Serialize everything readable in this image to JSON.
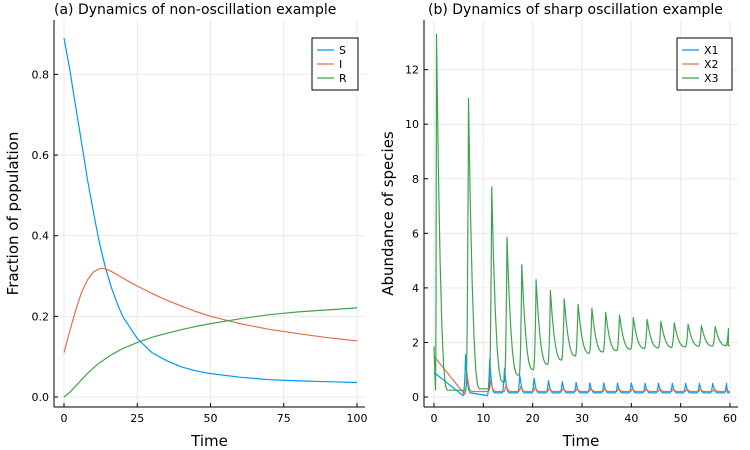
{
  "chart_data": [
    {
      "type": "line",
      "title": "(a) Dynamics of non-oscillation example",
      "xlabel": "Time",
      "ylabel": "Fraction of population",
      "xlim": [
        0,
        100
      ],
      "ylim": [
        0,
        0.92
      ],
      "xticks": [
        0,
        25,
        50,
        75,
        100
      ],
      "yticks": [
        0.0,
        0.2,
        0.4,
        0.6,
        0.8
      ],
      "xtick_labels": [
        "0",
        "25",
        "50",
        "75",
        "100"
      ],
      "ytick_labels": [
        "0.0",
        "0.2",
        "0.4",
        "0.6",
        "0.8"
      ],
      "grid": true,
      "legend": "top-right",
      "series": [
        {
          "name": "S",
          "color": "#009AFA",
          "x": [
            0,
            2,
            4,
            6,
            8,
            10,
            12,
            14,
            16,
            18,
            20,
            25,
            30,
            35,
            40,
            45,
            50,
            60,
            70,
            80,
            90,
            100
          ],
          "y": [
            0.89,
            0.81,
            0.72,
            0.63,
            0.54,
            0.46,
            0.385,
            0.325,
            0.275,
            0.235,
            0.2,
            0.145,
            0.11,
            0.09,
            0.075,
            0.065,
            0.058,
            0.049,
            0.043,
            0.04,
            0.038,
            0.036
          ]
        },
        {
          "name": "I",
          "color": "#E36F47",
          "x": [
            0,
            2,
            4,
            6,
            8,
            10,
            12,
            13,
            14,
            16,
            18,
            20,
            25,
            30,
            35,
            40,
            45,
            50,
            60,
            70,
            80,
            90,
            100
          ],
          "y": [
            0.11,
            0.165,
            0.215,
            0.26,
            0.29,
            0.31,
            0.318,
            0.319,
            0.318,
            0.312,
            0.304,
            0.295,
            0.275,
            0.257,
            0.24,
            0.226,
            0.212,
            0.2,
            0.182,
            0.168,
            0.157,
            0.147,
            0.139
          ]
        },
        {
          "name": "R",
          "color": "#3EA44E",
          "x": [
            0,
            2,
            4,
            6,
            8,
            10,
            12,
            14,
            16,
            18,
            20,
            25,
            30,
            35,
            40,
            45,
            50,
            60,
            70,
            80,
            90,
            100
          ],
          "y": [
            0.0,
            0.012,
            0.027,
            0.043,
            0.058,
            0.072,
            0.084,
            0.094,
            0.104,
            0.112,
            0.12,
            0.135,
            0.148,
            0.158,
            0.167,
            0.175,
            0.182,
            0.194,
            0.204,
            0.211,
            0.216,
            0.221
          ]
        }
      ]
    },
    {
      "type": "line",
      "title": "(b) Dynamics of sharp oscillation example",
      "xlabel": "Time",
      "ylabel": "Abundance of species",
      "xlim": [
        0,
        60
      ],
      "ylim": [
        0,
        13.6
      ],
      "xticks": [
        0,
        10,
        20,
        30,
        40,
        50,
        60
      ],
      "yticks": [
        0,
        2,
        4,
        6,
        8,
        10,
        12
      ],
      "xtick_labels": [
        "0",
        "10",
        "20",
        "30",
        "40",
        "50",
        "60"
      ],
      "ytick_labels": [
        "0",
        "2",
        "4",
        "6",
        "8",
        "10",
        "12"
      ],
      "grid": true,
      "legend": "top-right",
      "series": [
        {
          "name": "X1",
          "color": "#009AFA",
          "peaks_x": [
            6.4,
            11.3,
            14.3,
            17.4,
            20.3,
            23.2,
            26.0,
            28.8,
            31.6,
            34.4,
            37.2,
            40.0,
            42.8,
            45.5,
            48.3,
            51.0,
            53.8,
            56.5,
            59.3
          ],
          "peaks_y": [
            1.55,
            1.4,
            1.05,
            0.8,
            0.68,
            0.6,
            0.56,
            0.53,
            0.52,
            0.52,
            0.51,
            0.51,
            0.5,
            0.5,
            0.5,
            0.5,
            0.5,
            0.5,
            0.5
          ],
          "start": 0.9,
          "baseline": 0.05,
          "trough": 0.15
        },
        {
          "name": "X2",
          "color": "#E36F47",
          "peaks_x": [
            0.1,
            6.7,
            11.5,
            14.6,
            17.6,
            20.5,
            23.4,
            26.2,
            29.0,
            31.8,
            34.6,
            37.4,
            40.2,
            43.0,
            45.8,
            48.5,
            51.3,
            54.0,
            56.8,
            59.5
          ],
          "peaks_y": [
            1.5,
            0.85,
            0.6,
            0.45,
            0.38,
            0.35,
            0.33,
            0.32,
            0.32,
            0.31,
            0.31,
            0.31,
            0.3,
            0.3,
            0.3,
            0.3,
            0.3,
            0.3,
            0.3,
            0.3
          ],
          "start": 1.5,
          "baseline": 0.1,
          "trough": 0.2
        },
        {
          "name": "X3",
          "color": "#3EA44E",
          "peaks_x": [
            0.5,
            7.0,
            11.7,
            14.8,
            17.8,
            20.7,
            23.6,
            26.4,
            29.2,
            32.0,
            34.8,
            37.6,
            40.4,
            43.2,
            46.0,
            48.7,
            51.5,
            54.2,
            57.0,
            59.7
          ],
          "peaks_y": [
            13.3,
            10.95,
            7.7,
            5.85,
            4.85,
            4.3,
            3.9,
            3.6,
            3.4,
            3.25,
            3.1,
            3.0,
            2.92,
            2.85,
            2.78,
            2.72,
            2.67,
            2.62,
            2.58,
            2.52
          ],
          "troughs_y": [
            0.25,
            0.3,
            0.55,
            0.8,
            1.0,
            1.2,
            1.35,
            1.5,
            1.6,
            1.65,
            1.7,
            1.75,
            1.78,
            1.8,
            1.82,
            1.84,
            1.86,
            1.87,
            1.88
          ],
          "start": 1.85
        }
      ]
    }
  ]
}
